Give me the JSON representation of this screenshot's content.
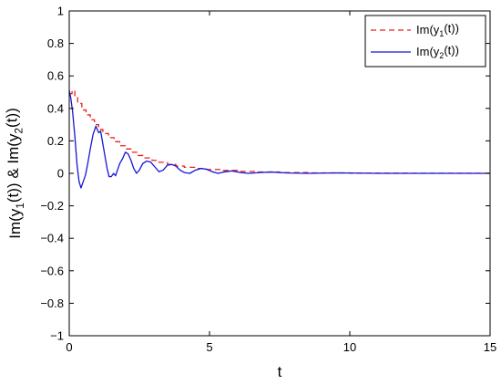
{
  "chart_data": {
    "type": "line",
    "title": "",
    "xlabel": "t",
    "ylabel": {
      "parts": [
        {
          "t": "Im(y",
          "sub": false
        },
        {
          "t": "1",
          "sub": true
        },
        {
          "t": "(t)) & Im(y",
          "sub": false
        },
        {
          "t": "2",
          "sub": true
        },
        {
          "t": "(t))",
          "sub": false
        }
      ]
    },
    "xlim": [
      0,
      15
    ],
    "ylim": [
      -1,
      1
    ],
    "xticks": [
      0,
      5,
      10,
      15
    ],
    "yticks": [
      -1,
      -0.8,
      -0.6,
      -0.4,
      -0.2,
      0,
      0.2,
      0.4,
      0.6,
      0.8,
      1
    ],
    "xtick_labels": [
      "0",
      "5",
      "10",
      "15"
    ],
    "ytick_labels": [
      "−1",
      "−0.8",
      "−0.6",
      "−0.4",
      "−0.2",
      "0",
      "0.2",
      "0.4",
      "0.6",
      "0.8",
      "1"
    ],
    "grid": false,
    "legend_position": "top-right",
    "series": [
      {
        "legend": {
          "parts": [
            {
              "t": "Im(y",
              "sub": false
            },
            {
              "t": "1",
              "sub": true
            },
            {
              "t": "(t))",
              "sub": false
            }
          ]
        },
        "color": "#e8201c",
        "style": "dashed",
        "step": true,
        "x": [
          0,
          0.1,
          0.2,
          0.3,
          0.45,
          0.6,
          0.75,
          0.9,
          1.05,
          1.2,
          1.4,
          1.6,
          1.8,
          2.0,
          2.2,
          2.45,
          2.7,
          2.95,
          3.2,
          3.5,
          3.8,
          4.1,
          4.5,
          4.9,
          5.4,
          6.0,
          6.7,
          7.5,
          8.5,
          10.0,
          12.0,
          15.0
        ],
        "y": [
          0.49,
          0.51,
          0.47,
          0.43,
          0.39,
          0.36,
          0.33,
          0.3,
          0.27,
          0.245,
          0.22,
          0.195,
          0.17,
          0.15,
          0.13,
          0.11,
          0.095,
          0.08,
          0.068,
          0.055,
          0.045,
          0.037,
          0.03,
          0.024,
          0.018,
          0.012,
          0.008,
          0.005,
          0.003,
          0.001,
          0.0005,
          0.0
        ]
      },
      {
        "legend": {
          "parts": [
            {
              "t": "Im(y",
              "sub": false
            },
            {
              "t": "2",
              "sub": true
            },
            {
              "t": "(t))",
              "sub": false
            }
          ]
        },
        "color": "#1515d6",
        "style": "solid",
        "step": false,
        "x": [
          0,
          0.05,
          0.12,
          0.2,
          0.28,
          0.35,
          0.42,
          0.5,
          0.58,
          0.66,
          0.75,
          0.85,
          0.95,
          1.05,
          1.12,
          1.2,
          1.28,
          1.35,
          1.42,
          1.5,
          1.58,
          1.65,
          1.72,
          1.8,
          1.9,
          2.0,
          2.1,
          2.2,
          2.3,
          2.4,
          2.5,
          2.62,
          2.75,
          2.9,
          3.05,
          3.2,
          3.35,
          3.5,
          3.65,
          3.8,
          3.95,
          4.1,
          4.3,
          4.5,
          4.7,
          4.9,
          5.1,
          5.3,
          5.5,
          5.8,
          6.1,
          6.4,
          6.8,
          7.2,
          7.8,
          8.5,
          9.5,
          11.0,
          13.0,
          15.0
        ],
        "y": [
          0.51,
          0.47,
          0.38,
          0.23,
          0.05,
          -0.05,
          -0.09,
          -0.05,
          -0.01,
          0.06,
          0.15,
          0.24,
          0.29,
          0.25,
          0.26,
          0.18,
          0.1,
          0.03,
          -0.02,
          -0.02,
          0.0,
          -0.015,
          0.02,
          0.06,
          0.09,
          0.13,
          0.12,
          0.08,
          0.03,
          0.0,
          0.02,
          0.06,
          0.075,
          0.07,
          0.04,
          0.01,
          0.02,
          0.05,
          0.055,
          0.045,
          0.02,
          0.005,
          0.0,
          0.02,
          0.03,
          0.025,
          0.01,
          0.0,
          0.008,
          0.015,
          0.005,
          0.0,
          0.005,
          0.008,
          0.002,
          0.0,
          0.003,
          0.0,
          0.0,
          0.0
        ]
      }
    ]
  }
}
